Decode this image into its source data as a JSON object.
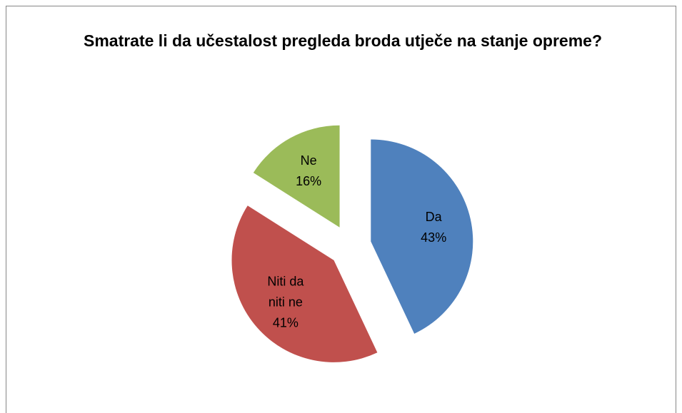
{
  "chart_data": {
    "type": "pie",
    "title": "Smatrate li da učestalost pregleda broda utječe na stanje opreme?",
    "categories": [
      "Da",
      "Niti da niti ne",
      "Ne"
    ],
    "values": [
      43,
      41,
      16
    ],
    "value_labels": [
      "43%",
      "41%",
      "16%"
    ],
    "colors": [
      "#4f81bd",
      "#c0504d",
      "#9bbb59"
    ],
    "exploded": true
  }
}
